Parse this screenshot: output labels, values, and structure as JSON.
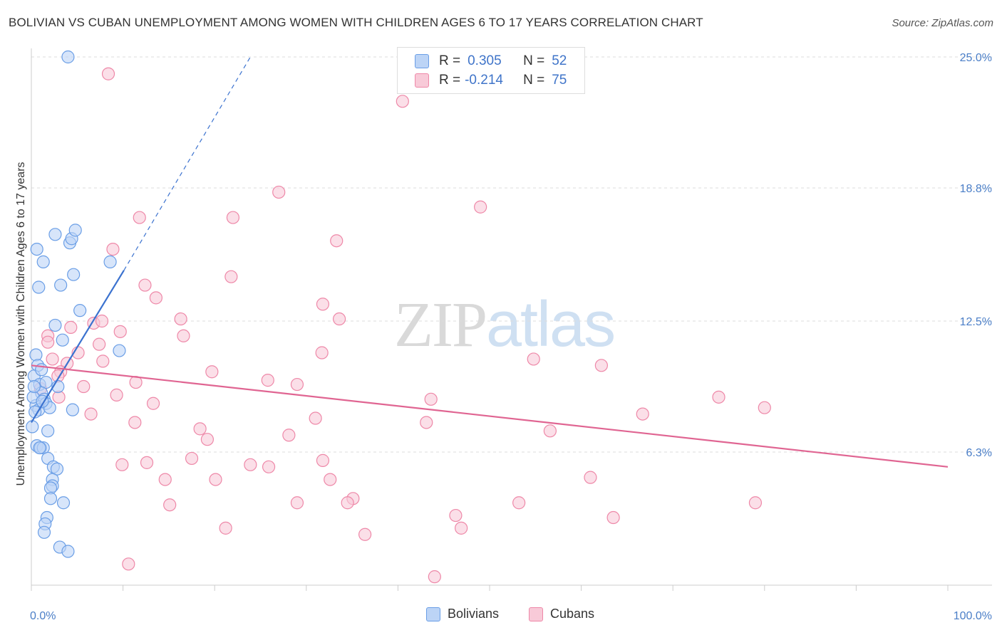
{
  "title": "BOLIVIAN VS CUBAN UNEMPLOYMENT AMONG WOMEN WITH CHILDREN AGES 6 TO 17 YEARS CORRELATION CHART",
  "source": "Source: ZipAtlas.com",
  "watermark": {
    "part1": "ZIP",
    "part2": "atlas"
  },
  "legend": {
    "bolivians": {
      "r_label": "R =",
      "r_value": "0.305",
      "n_label": "N =",
      "n_value": "52"
    },
    "cubans": {
      "r_label": "R =",
      "r_value": "-0.214",
      "n_label": "N =",
      "n_value": "75"
    }
  },
  "bottom_legend": {
    "bolivians": "Bolivians",
    "cubans": "Cubans"
  },
  "chart_data": {
    "type": "scatter",
    "title": "BOLIVIAN VS CUBAN UNEMPLOYMENT AMONG WOMEN WITH CHILDREN AGES 6 TO 17 YEARS CORRELATION CHART",
    "xlabel": "",
    "ylabel": "Unemployment Among Women with Children Ages 6 to 17 years",
    "xlim": [
      0,
      100
    ],
    "ylim": [
      0,
      25.0
    ],
    "x_ticks": [
      {
        "value": 0,
        "label": "0.0%"
      },
      {
        "value": 100,
        "label": "100.0%"
      }
    ],
    "y_ticks": [
      {
        "value": 6.3,
        "label": "6.3%"
      },
      {
        "value": 12.5,
        "label": "12.5%"
      },
      {
        "value": 18.8,
        "label": "18.8%"
      },
      {
        "value": 25.0,
        "label": "25.0%"
      }
    ],
    "grid": true,
    "colors": {
      "bolivians": "#6a9ee6",
      "bolivians_fill": "#bcd4f6",
      "bolivians_line": "#3b72cf",
      "cubans": "#ee88a8",
      "cubans_fill": "#f8cad8",
      "cubans_line": "#e06592"
    },
    "series": [
      {
        "name": "Bolivians",
        "points": [
          [
            4.0,
            25.0
          ],
          [
            0.6,
            15.9
          ],
          [
            1.3,
            15.3
          ],
          [
            0.8,
            14.1
          ],
          [
            3.2,
            14.2
          ],
          [
            4.6,
            14.7
          ],
          [
            2.6,
            16.6
          ],
          [
            4.2,
            16.2
          ],
          [
            4.4,
            16.4
          ],
          [
            4.8,
            16.8
          ],
          [
            8.6,
            15.3
          ],
          [
            5.3,
            13.0
          ],
          [
            2.6,
            12.3
          ],
          [
            3.4,
            11.6
          ],
          [
            9.6,
            11.1
          ],
          [
            0.5,
            10.9
          ],
          [
            0.7,
            10.4
          ],
          [
            0.3,
            9.9
          ],
          [
            1.1,
            10.2
          ],
          [
            0.9,
            9.5
          ],
          [
            1.6,
            9.6
          ],
          [
            2.9,
            9.4
          ],
          [
            1.1,
            9.1
          ],
          [
            1.4,
            8.8
          ],
          [
            0.5,
            8.5
          ],
          [
            1.6,
            8.6
          ],
          [
            0.8,
            8.3
          ],
          [
            2.0,
            8.4
          ],
          [
            0.4,
            8.2
          ],
          [
            4.5,
            8.3
          ],
          [
            0.1,
            7.5
          ],
          [
            1.8,
            7.3
          ],
          [
            0.6,
            6.6
          ],
          [
            1.0,
            6.5
          ],
          [
            1.3,
            6.5
          ],
          [
            1.8,
            6.0
          ],
          [
            2.4,
            5.6
          ],
          [
            2.8,
            5.5
          ],
          [
            2.3,
            5.0
          ],
          [
            2.3,
            4.7
          ],
          [
            2.1,
            4.6
          ],
          [
            2.1,
            4.1
          ],
          [
            3.5,
            3.9
          ],
          [
            1.7,
            3.2
          ],
          [
            1.5,
            2.9
          ],
          [
            1.4,
            2.5
          ],
          [
            3.1,
            1.8
          ],
          [
            4.0,
            1.6
          ],
          [
            0.2,
            8.9
          ],
          [
            0.3,
            9.4
          ],
          [
            0.9,
            6.5
          ],
          [
            1.2,
            8.7
          ]
        ]
      },
      {
        "name": "Cubans",
        "points": [
          [
            8.4,
            24.2
          ],
          [
            40.5,
            22.9
          ],
          [
            27.0,
            18.6
          ],
          [
            49.0,
            17.9
          ],
          [
            11.8,
            17.4
          ],
          [
            22.0,
            17.4
          ],
          [
            33.3,
            16.3
          ],
          [
            8.9,
            15.9
          ],
          [
            21.8,
            14.6
          ],
          [
            12.4,
            14.2
          ],
          [
            13.6,
            13.6
          ],
          [
            31.8,
            13.3
          ],
          [
            16.3,
            12.6
          ],
          [
            33.6,
            12.6
          ],
          [
            6.8,
            12.4
          ],
          [
            4.3,
            12.2
          ],
          [
            9.7,
            12.0
          ],
          [
            1.8,
            11.8
          ],
          [
            1.8,
            11.5
          ],
          [
            16.6,
            11.8
          ],
          [
            7.4,
            11.4
          ],
          [
            5.1,
            11.0
          ],
          [
            31.7,
            11.0
          ],
          [
            54.8,
            10.7
          ],
          [
            2.3,
            10.7
          ],
          [
            7.8,
            10.6
          ],
          [
            3.9,
            10.5
          ],
          [
            62.2,
            10.4
          ],
          [
            19.7,
            10.1
          ],
          [
            3.2,
            10.1
          ],
          [
            25.8,
            9.7
          ],
          [
            29.0,
            9.5
          ],
          [
            5.7,
            9.4
          ],
          [
            1.0,
            9.3
          ],
          [
            9.3,
            9.0
          ],
          [
            3.0,
            8.9
          ],
          [
            43.6,
            8.8
          ],
          [
            75.0,
            8.9
          ],
          [
            13.3,
            8.6
          ],
          [
            80.0,
            8.4
          ],
          [
            6.5,
            8.1
          ],
          [
            66.7,
            8.1
          ],
          [
            31.0,
            7.9
          ],
          [
            11.3,
            7.7
          ],
          [
            43.1,
            7.7
          ],
          [
            18.4,
            7.4
          ],
          [
            56.6,
            7.3
          ],
          [
            28.1,
            7.1
          ],
          [
            19.2,
            6.9
          ],
          [
            17.5,
            6.0
          ],
          [
            12.6,
            5.8
          ],
          [
            9.9,
            5.7
          ],
          [
            23.9,
            5.7
          ],
          [
            25.9,
            5.6
          ],
          [
            31.8,
            5.9
          ],
          [
            14.6,
            5.0
          ],
          [
            20.1,
            5.0
          ],
          [
            32.6,
            5.0
          ],
          [
            61.0,
            5.1
          ],
          [
            35.1,
            4.1
          ],
          [
            34.5,
            3.9
          ],
          [
            29.0,
            3.9
          ],
          [
            15.1,
            3.8
          ],
          [
            53.2,
            3.9
          ],
          [
            79.0,
            3.9
          ],
          [
            46.3,
            3.3
          ],
          [
            63.5,
            3.2
          ],
          [
            21.2,
            2.7
          ],
          [
            46.9,
            2.7
          ],
          [
            36.4,
            2.4
          ],
          [
            10.6,
            1.0
          ],
          [
            44.0,
            0.4
          ],
          [
            7.7,
            12.5
          ],
          [
            11.4,
            9.6
          ],
          [
            2.9,
            9.9
          ]
        ]
      }
    ],
    "trend_lines": [
      {
        "series": "Bolivians",
        "from": [
          0,
          7.7
        ],
        "to": [
          10.1,
          14.9
        ],
        "dashed_to": [
          23.9,
          25.0
        ]
      },
      {
        "series": "Cubans",
        "from": [
          0,
          10.4
        ],
        "to": [
          100,
          5.6
        ]
      }
    ]
  }
}
